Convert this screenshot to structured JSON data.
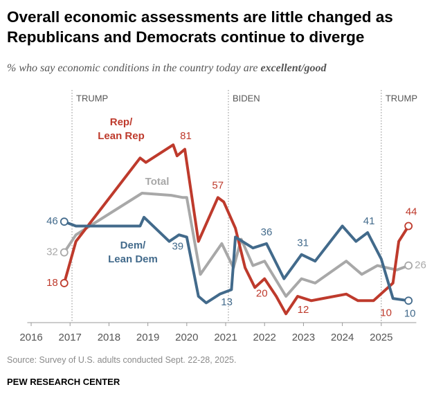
{
  "chart_data": {
    "type": "line",
    "title": "Overall economic assessments are little changed as Republicans and Democrats continue to diverge",
    "subtitle": {
      "text": "% who say economic conditions in the country today are",
      "emphasis": "excellent/good"
    },
    "source": "Source: Survey of U.S. adults conducted Sept. 22-28, 2025.",
    "credit": "PEW RESEARCH CENTER",
    "xlim": [
      2015.9,
      2025.9
    ],
    "xticks": [
      2016,
      2017,
      2018,
      2019,
      2020,
      2021,
      2022,
      2023,
      2024,
      2025
    ],
    "ylim": [
      0,
      90
    ],
    "annotations": [
      {
        "text": "TRUMP",
        "x": 2017.05
      },
      {
        "text": "BIDEN",
        "x": 2021.07
      },
      {
        "text": "TRUMP",
        "x": 2025.0
      }
    ],
    "series": [
      {
        "name": "Rep/\nLean Rep",
        "color": "#be3a2c",
        "x": [
          2016.85,
          2017.15,
          2018.8,
          2018.95,
          2019.65,
          2019.75,
          2019.95,
          2020.3,
          2020.8,
          2020.95,
          2021.25,
          2021.5,
          2021.75,
          2022.0,
          2022.3,
          2022.55,
          2022.85,
          2023.2,
          2023.5,
          2024.1,
          2024.4,
          2024.8,
          2025.3,
          2025.45,
          2025.7
        ],
        "values": [
          18,
          37,
          75,
          73,
          81,
          76,
          79,
          37,
          57,
          55,
          43,
          25,
          16,
          20,
          12,
          4,
          12,
          10,
          11,
          13,
          10,
          10,
          18,
          37,
          44
        ]
      },
      {
        "name": "Total",
        "color": "#a8a8a8",
        "x": [
          2016.85,
          2017.15,
          2018.85,
          2019.6,
          2019.9,
          2020.0,
          2020.35,
          2020.9,
          2021.2,
          2021.4,
          2021.7,
          2022.0,
          2022.55,
          2022.95,
          2023.3,
          2024.1,
          2024.5,
          2024.9,
          2025.4,
          2025.7
        ],
        "values": [
          32,
          40,
          59,
          58,
          57,
          57,
          22,
          36,
          25,
          38,
          26,
          28,
          12,
          20,
          18,
          28,
          22,
          26,
          24,
          26
        ]
      },
      {
        "name": "Dem/\nLean Dem",
        "color": "#426a8b",
        "x": [
          2016.85,
          2017.15,
          2018.8,
          2018.9,
          2019.55,
          2019.8,
          2020.0,
          2020.3,
          2020.5,
          2020.85,
          2021.15,
          2021.25,
          2021.7,
          2022.05,
          2022.5,
          2022.95,
          2023.3,
          2024.0,
          2024.35,
          2024.65,
          2025.0,
          2025.3,
          2025.7
        ],
        "values": [
          46,
          44,
          44,
          48,
          37,
          40,
          39,
          12,
          9,
          13,
          15,
          39,
          34,
          36,
          20,
          31,
          28,
          44,
          37,
          41,
          29,
          11,
          10
        ]
      }
    ]
  }
}
